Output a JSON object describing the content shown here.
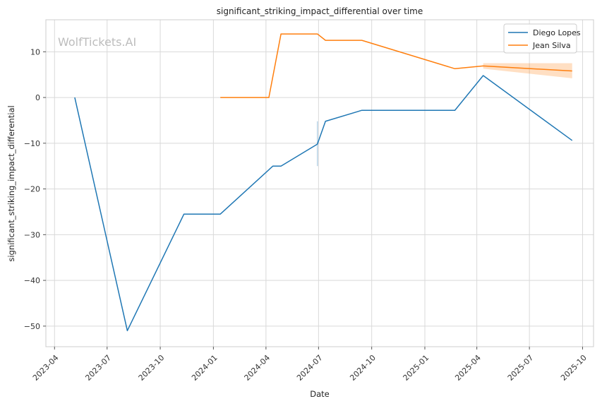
{
  "chart_data": {
    "type": "line",
    "title": "significant_striking_impact_differential over time",
    "xlabel": "Date",
    "ylabel": "significant_striking_impact_differential",
    "watermark": "WolfTickets.AI",
    "x_range": [
      "2023-03-17",
      "2025-10-20"
    ],
    "ylim": [
      -54.5,
      17.0
    ],
    "x_ticks": [
      "2023-04",
      "2023-07",
      "2023-10",
      "2024-01",
      "2024-04",
      "2024-07",
      "2024-10",
      "2025-01",
      "2025-04",
      "2025-07",
      "2025-10"
    ],
    "y_ticks": [
      10,
      0,
      -10,
      -20,
      -30,
      -40,
      -50
    ],
    "y_tick_labels": [
      "10",
      "0",
      "−10",
      "−20",
      "−30",
      "−40",
      "−50"
    ],
    "grid": true,
    "legend": "top-right",
    "series": [
      {
        "name": "Diego Lopes",
        "color": "#1f77b4",
        "points": [
          {
            "x": "2023-05-06",
            "y": 0
          },
          {
            "x": "2023-08-05",
            "y": -51
          },
          {
            "x": "2023-11-11",
            "y": -25.5
          },
          {
            "x": "2024-01-13",
            "y": -25.5
          },
          {
            "x": "2024-04-13",
            "y": -15
          },
          {
            "x": "2024-04-27",
            "y": -15
          },
          {
            "x": "2024-06-29",
            "y": -10.2
          },
          {
            "x": "2024-07-13",
            "y": -5.2
          },
          {
            "x": "2024-09-14",
            "y": -2.8
          },
          {
            "x": "2025-02-22",
            "y": -2.8
          },
          {
            "x": "2025-04-12",
            "y": 4.8
          },
          {
            "x": "2025-09-13",
            "y": -9.4
          }
        ],
        "band": [
          {
            "x": "2024-06-29",
            "low": -15,
            "high": -5.2
          }
        ]
      },
      {
        "name": "Jean Silva",
        "color": "#ff7f0e",
        "points": [
          {
            "x": "2024-01-13",
            "y": 0
          },
          {
            "x": "2024-04-06",
            "y": 0
          },
          {
            "x": "2024-04-27",
            "y": 13.9
          },
          {
            "x": "2024-06-29",
            "y": 13.9
          },
          {
            "x": "2024-07-13",
            "y": 12.5
          },
          {
            "x": "2024-09-14",
            "y": 12.5
          },
          {
            "x": "2025-02-22",
            "y": 6.3
          },
          {
            "x": "2025-04-12",
            "y": 6.9
          },
          {
            "x": "2025-09-13",
            "y": 5.8
          }
        ],
        "band": [
          {
            "x": "2025-04-12",
            "low": 6.3,
            "high": 7.5
          },
          {
            "x": "2025-09-13",
            "low": 4.2,
            "high": 7.5
          }
        ]
      }
    ]
  }
}
